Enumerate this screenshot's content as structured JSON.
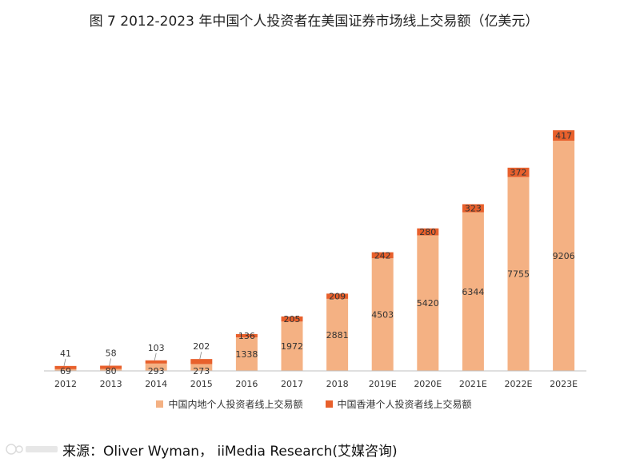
{
  "title": "图 7    2012-2023 年中国个人投资者在美国证券市场线上交易额（亿美元）",
  "colors": {
    "mainland": "#F4B183",
    "hongkong": "#E8602C",
    "axis": "#bfbfbf"
  },
  "chart_data": {
    "type": "bar",
    "stacked": true,
    "categories": [
      "2012",
      "2013",
      "2014",
      "2015",
      "2016",
      "2017",
      "2018",
      "2019E",
      "2020E",
      "2021E",
      "2022E",
      "2023E"
    ],
    "series": [
      {
        "name": "中国内地个人投资者线上交易额",
        "values": [
          69,
          80,
          293,
          273,
          1338,
          1972,
          2881,
          4503,
          5420,
          6344,
          7755,
          9206
        ]
      },
      {
        "name": "中国香港个人投资者线上交易额",
        "values": [
          41,
          58,
          103,
          202,
          136,
          205,
          209,
          242,
          280,
          323,
          372,
          417
        ]
      }
    ],
    "legend_position": "bottom",
    "grid": false
  },
  "source": "来源：Oliver Wyman，  iiMedia Research(艾媒咨询)"
}
